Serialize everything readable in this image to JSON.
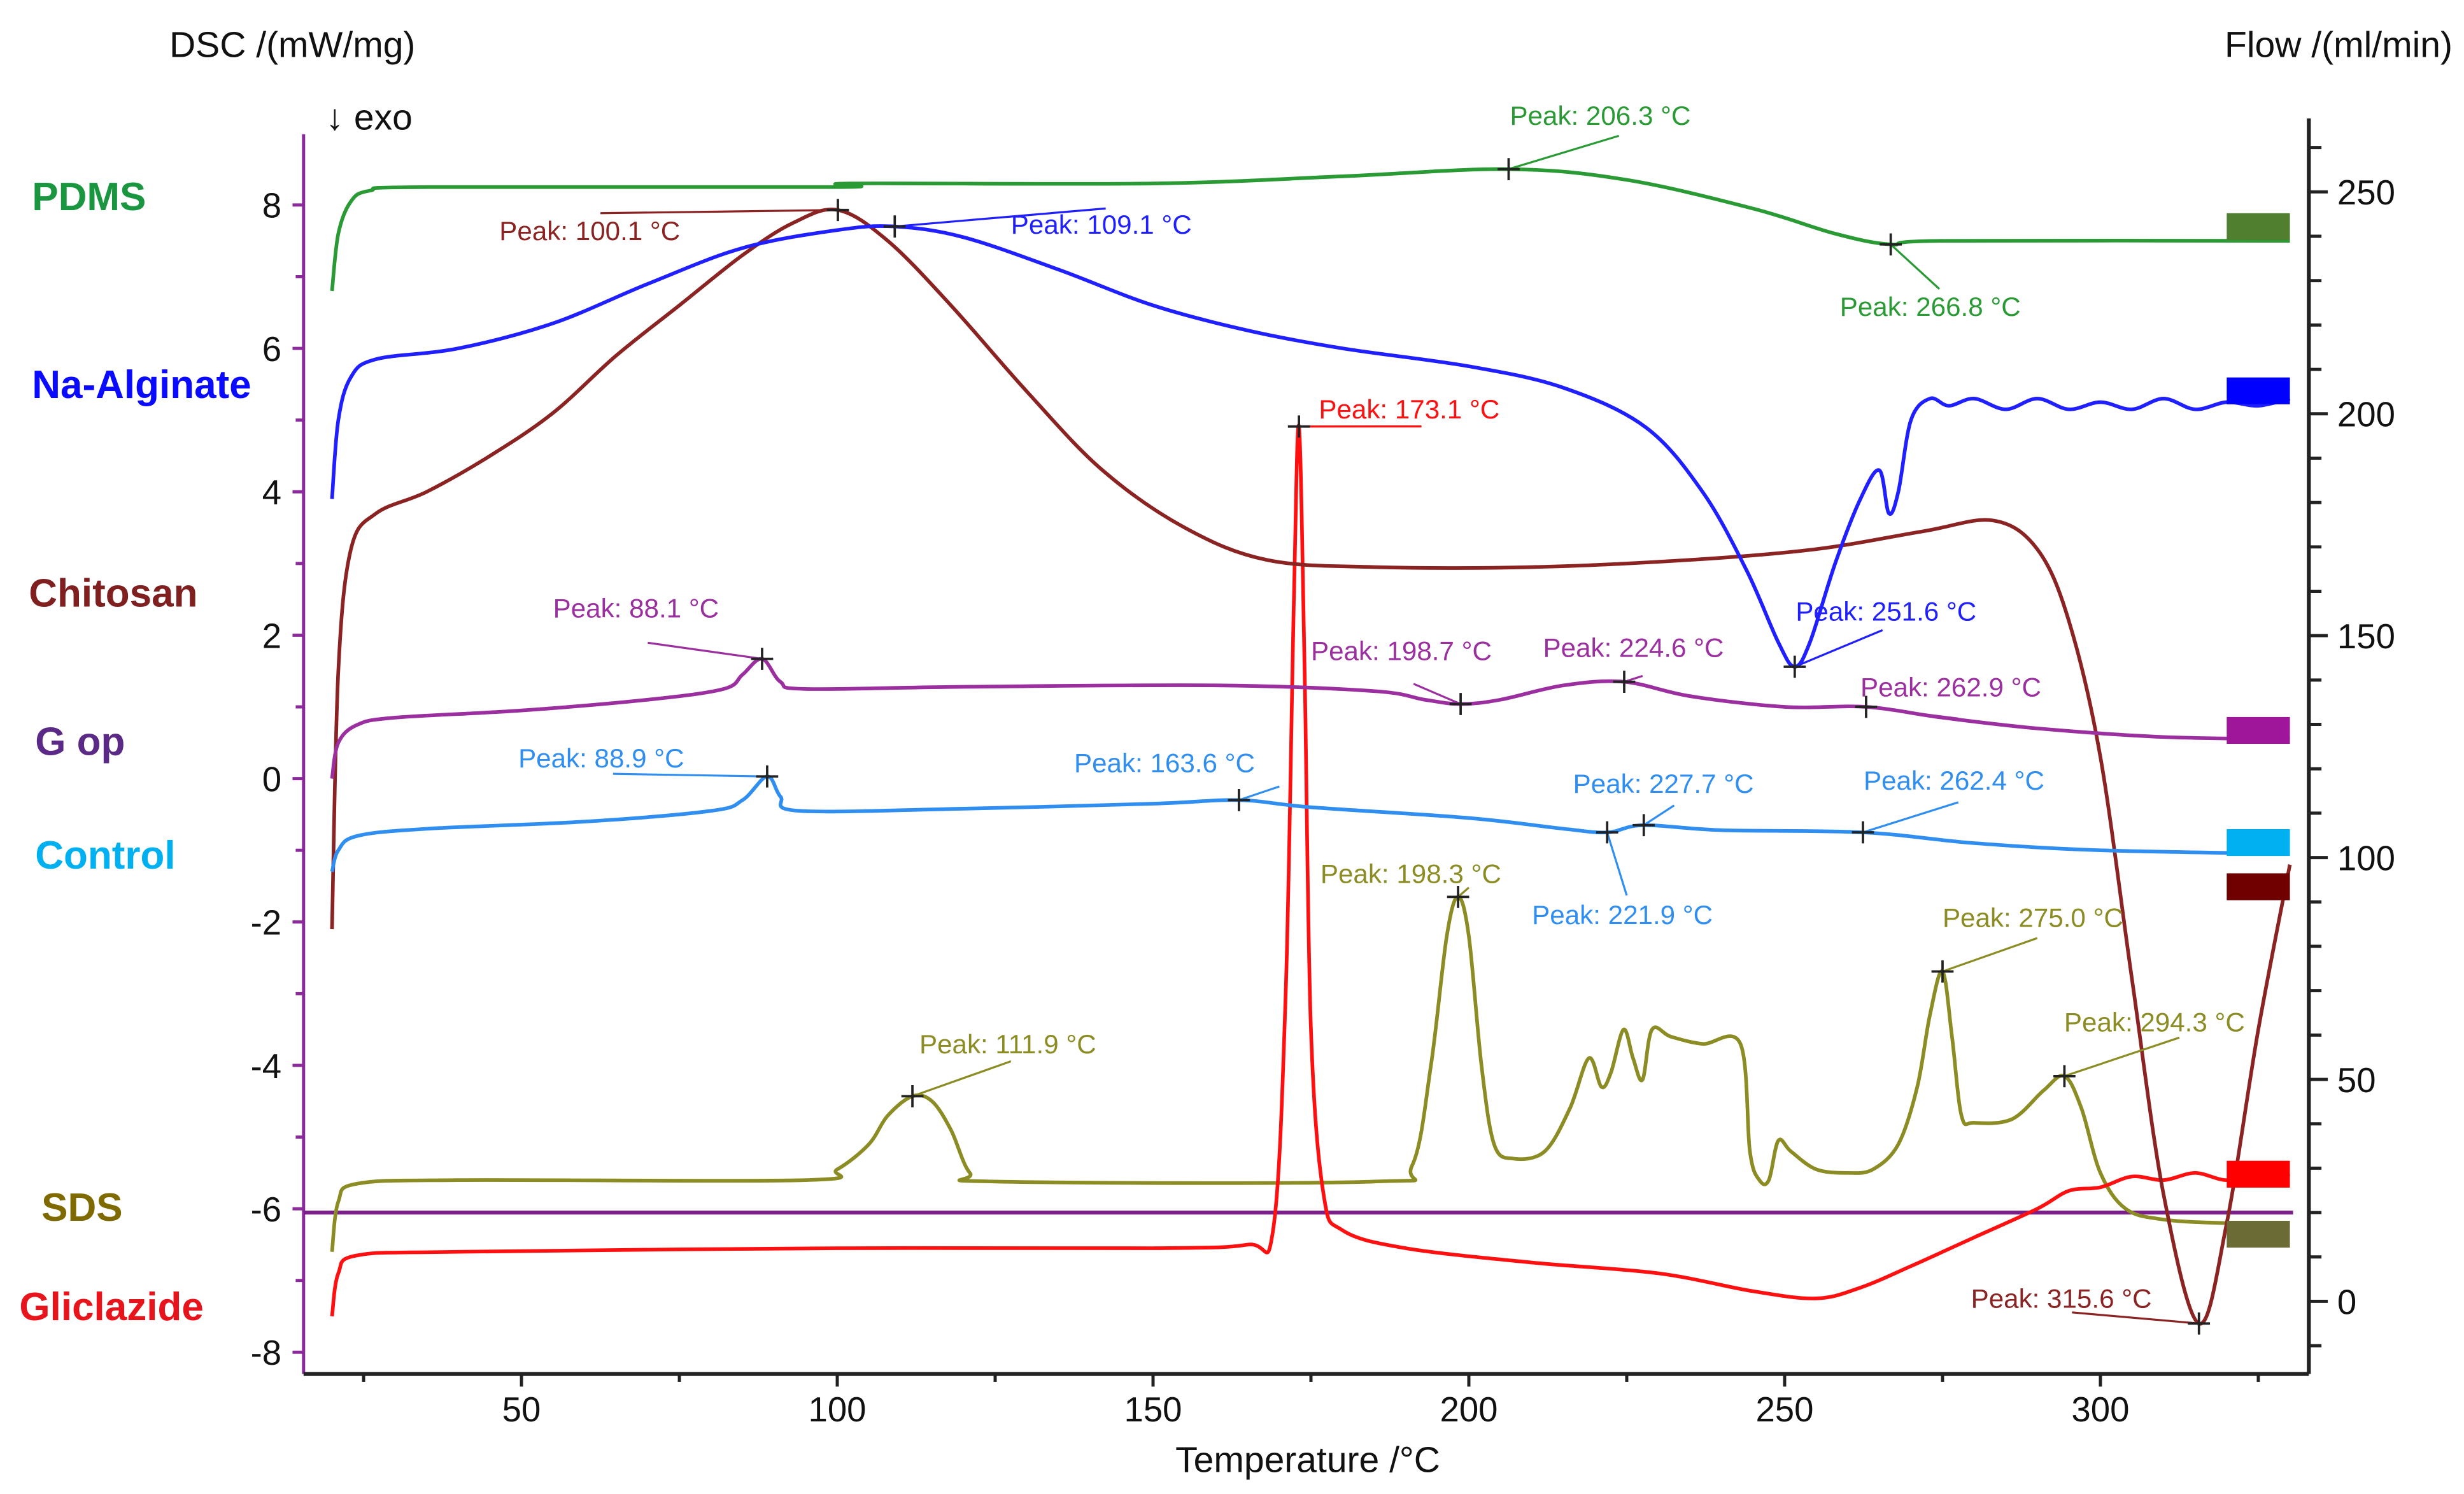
{
  "chart_data": {
    "type": "line",
    "title": "",
    "xlabel": "Temperature /°C",
    "ylabel": "DSC /(mW/mg)",
    "y2label": "Flow /(ml/min)",
    "exo_label": "↓ exo",
    "xlim": [
      15.5,
      333
    ],
    "ylim": [
      -8.5,
      9
    ],
    "y2lim": [
      -16,
      264
    ],
    "xticks": [
      50,
      100,
      150,
      200,
      250,
      300
    ],
    "yticks": [
      -8,
      -6,
      -4,
      -2,
      0,
      2,
      4,
      6,
      8
    ],
    "y2ticks": [
      0,
      50,
      100,
      150,
      200,
      250
    ],
    "grid": false,
    "series": [
      {
        "name": "PDMS",
        "color": "#2a9a35",
        "label_color": "#1a9641",
        "marker_color": "#4f7f2f",
        "points": [
          [
            20,
            6.8
          ],
          [
            21,
            7.6
          ],
          [
            23,
            8.05
          ],
          [
            26,
            8.2
          ],
          [
            35,
            8.25
          ],
          [
            100,
            8.25
          ],
          [
            102,
            8.3
          ],
          [
            150,
            8.3
          ],
          [
            180,
            8.4
          ],
          [
            206.3,
            8.5
          ],
          [
            225,
            8.35
          ],
          [
            245,
            7.95
          ],
          [
            258,
            7.6
          ],
          [
            266.8,
            7.45
          ],
          [
            275,
            7.5
          ],
          [
            330,
            7.5
          ]
        ],
        "peaks": [
          {
            "T": 206.3,
            "dsc": 8.5,
            "label": "Peak: 206.3 °C"
          },
          {
            "T": 266.8,
            "dsc": 7.45,
            "label": "Peak: 266.8 °C"
          }
        ]
      },
      {
        "name": "Na-Alginate",
        "color": "#1f1fff",
        "label_color": "#0a0aff",
        "marker_color": "#0000ff",
        "points": [
          [
            20,
            3.9
          ],
          [
            21,
            5.0
          ],
          [
            23,
            5.6
          ],
          [
            27,
            5.85
          ],
          [
            40,
            6.0
          ],
          [
            55,
            6.35
          ],
          [
            70,
            6.9
          ],
          [
            85,
            7.4
          ],
          [
            100,
            7.65
          ],
          [
            109.1,
            7.7
          ],
          [
            120,
            7.55
          ],
          [
            135,
            7.1
          ],
          [
            150,
            6.6
          ],
          [
            165,
            6.25
          ],
          [
            180,
            6.0
          ],
          [
            200,
            5.75
          ],
          [
            215,
            5.45
          ],
          [
            228,
            4.9
          ],
          [
            237,
            4.0
          ],
          [
            244,
            2.9
          ],
          [
            249,
            1.9
          ],
          [
            251.6,
            1.56
          ],
          [
            254,
            1.9
          ],
          [
            258,
            3.0
          ],
          [
            262,
            3.9
          ],
          [
            265,
            4.3
          ],
          [
            266.5,
            3.7
          ],
          [
            268,
            4.0
          ],
          [
            270,
            5.0
          ],
          [
            273,
            5.3
          ],
          [
            276,
            5.2
          ],
          [
            280,
            5.3
          ],
          [
            285,
            5.15
          ],
          [
            290,
            5.3
          ],
          [
            295,
            5.15
          ],
          [
            300,
            5.25
          ],
          [
            305,
            5.15
          ],
          [
            310,
            5.3
          ],
          [
            315,
            5.15
          ],
          [
            320,
            5.25
          ],
          [
            325,
            5.2
          ],
          [
            330,
            5.3
          ]
        ],
        "peaks": [
          {
            "T": 109.1,
            "dsc": 7.7,
            "label": "Peak: 109.1 °C"
          },
          {
            "T": 251.6,
            "dsc": 1.56,
            "label": "Peak: 251.6 °C"
          }
        ]
      },
      {
        "name": "Chitosan",
        "color": "#8b2323",
        "label_color": "#7f1f1f",
        "marker_color": "#700000",
        "points": [
          [
            20,
            -2.1
          ],
          [
            21,
            1.5
          ],
          [
            23,
            3.2
          ],
          [
            27,
            3.7
          ],
          [
            35,
            4.0
          ],
          [
            45,
            4.5
          ],
          [
            55,
            5.1
          ],
          [
            65,
            5.9
          ],
          [
            75,
            6.6
          ],
          [
            85,
            7.3
          ],
          [
            93,
            7.75
          ],
          [
            100.1,
            7.93
          ],
          [
            108,
            7.5
          ],
          [
            118,
            6.6
          ],
          [
            130,
            5.4
          ],
          [
            142,
            4.3
          ],
          [
            155,
            3.5
          ],
          [
            168,
            3.05
          ],
          [
            185,
            2.95
          ],
          [
            210,
            2.95
          ],
          [
            235,
            3.05
          ],
          [
            255,
            3.2
          ],
          [
            272,
            3.45
          ],
          [
            283,
            3.6
          ],
          [
            290,
            3.2
          ],
          [
            295,
            2.2
          ],
          [
            300,
            0.3
          ],
          [
            305,
            -2.8
          ],
          [
            310,
            -5.8
          ],
          [
            315.6,
            -7.6
          ],
          [
            320,
            -6.2
          ],
          [
            325,
            -3.5
          ],
          [
            330,
            -1.2
          ]
        ],
        "peaks": [
          {
            "T": 100.1,
            "dsc": 7.93,
            "label": "Peak: 100.1 °C"
          },
          {
            "T": 315.6,
            "dsc": -7.6,
            "label": "Peak: 315.6 °C"
          }
        ]
      },
      {
        "name": "G op",
        "color": "#9b2fa0",
        "label_color": "#5b2a86",
        "marker_color": "#a0169a",
        "points": [
          [
            20,
            0.0
          ],
          [
            21,
            0.5
          ],
          [
            24,
            0.75
          ],
          [
            30,
            0.85
          ],
          [
            50,
            0.95
          ],
          [
            70,
            1.1
          ],
          [
            82,
            1.25
          ],
          [
            85,
            1.45
          ],
          [
            88.1,
            1.67
          ],
          [
            91,
            1.35
          ],
          [
            95,
            1.25
          ],
          [
            120,
            1.28
          ],
          [
            160,
            1.3
          ],
          [
            185,
            1.22
          ],
          [
            193,
            1.1
          ],
          [
            198.7,
            1.04
          ],
          [
            205,
            1.1
          ],
          [
            215,
            1.3
          ],
          [
            224.6,
            1.35
          ],
          [
            235,
            1.15
          ],
          [
            250,
            1.0
          ],
          [
            262.9,
            1.0
          ],
          [
            275,
            0.85
          ],
          [
            290,
            0.7
          ],
          [
            310,
            0.58
          ],
          [
            330,
            0.55
          ]
        ],
        "peaks": [
          {
            "T": 88.1,
            "dsc": 1.67,
            "label": "Peak: 88.1 °C"
          },
          {
            "T": 198.7,
            "dsc": 1.04,
            "label": "Peak: 198.7 °C"
          },
          {
            "T": 224.6,
            "dsc": 1.35,
            "label": "Peak: 224.6 °C"
          },
          {
            "T": 262.9,
            "dsc": 1.0,
            "label": "Peak: 262.9 °C"
          }
        ]
      },
      {
        "name": "Control",
        "color": "#2f8ef0",
        "label_color": "#00b0f0",
        "marker_color": "#00b0f0",
        "points": [
          [
            20,
            -1.3
          ],
          [
            21,
            -1.0
          ],
          [
            24,
            -0.8
          ],
          [
            35,
            -0.7
          ],
          [
            60,
            -0.6
          ],
          [
            80,
            -0.45
          ],
          [
            85,
            -0.3
          ],
          [
            88.9,
            0.03
          ],
          [
            91,
            -0.25
          ],
          [
            94,
            -0.45
          ],
          [
            120,
            -0.42
          ],
          [
            150,
            -0.35
          ],
          [
            163.6,
            -0.3
          ],
          [
            175,
            -0.4
          ],
          [
            200,
            -0.55
          ],
          [
            215,
            -0.7
          ],
          [
            221.9,
            -0.75
          ],
          [
            227.7,
            -0.65
          ],
          [
            240,
            -0.72
          ],
          [
            262.4,
            -0.75
          ],
          [
            280,
            -0.9
          ],
          [
            300,
            -1.0
          ],
          [
            330,
            -1.05
          ]
        ],
        "peaks": [
          {
            "T": 88.9,
            "dsc": 0.03,
            "label": "Peak: 88.9 °C"
          },
          {
            "T": 163.6,
            "dsc": -0.3,
            "label": "Peak: 163.6 °C"
          },
          {
            "T": 227.7,
            "dsc": -0.65,
            "label": "Peak: 227.7 °C"
          },
          {
            "T": 221.9,
            "dsc": -0.75,
            "label": "Peak: 221.9 °C"
          },
          {
            "T": 262.4,
            "dsc": -0.75,
            "label": "Peak: 262.4 °C"
          }
        ]
      },
      {
        "name": "SDS",
        "color": "#8c8c24",
        "label_color": "#7f6a00",
        "marker_color": "#6b6b35",
        "points": [
          [
            20,
            -6.6
          ],
          [
            21,
            -5.9
          ],
          [
            24,
            -5.65
          ],
          [
            40,
            -5.6
          ],
          [
            95,
            -5.6
          ],
          [
            100,
            -5.45
          ],
          [
            105,
            -5.1
          ],
          [
            108,
            -4.7
          ],
          [
            111.9,
            -4.43
          ],
          [
            115,
            -4.5
          ],
          [
            118,
            -4.9
          ],
          [
            121,
            -5.5
          ],
          [
            125,
            -5.62
          ],
          [
            185,
            -5.62
          ],
          [
            191,
            -5.4
          ],
          [
            194,
            -4.0
          ],
          [
            196.5,
            -2.2
          ],
          [
            198.3,
            -1.65
          ],
          [
            200,
            -2.2
          ],
          [
            202,
            -4.0
          ],
          [
            204,
            -5.1
          ],
          [
            207,
            -5.3
          ],
          [
            212,
            -5.2
          ],
          [
            216,
            -4.6
          ],
          [
            219,
            -3.9
          ],
          [
            221,
            -4.3
          ],
          [
            222.5,
            -4.1
          ],
          [
            224.5,
            -3.5
          ],
          [
            226,
            -3.9
          ],
          [
            227.5,
            -4.2
          ],
          [
            229,
            -3.5
          ],
          [
            232,
            -3.6
          ],
          [
            237,
            -3.7
          ],
          [
            243,
            -3.7
          ],
          [
            244.5,
            -5.2
          ],
          [
            246,
            -5.6
          ],
          [
            247.5,
            -5.6
          ],
          [
            249,
            -5.05
          ],
          [
            251,
            -5.2
          ],
          [
            255,
            -5.45
          ],
          [
            260,
            -5.5
          ],
          [
            264,
            -5.45
          ],
          [
            268,
            -5.1
          ],
          [
            271,
            -4.3
          ],
          [
            273,
            -3.3
          ],
          [
            275,
            -2.69
          ],
          [
            276.5,
            -3.6
          ],
          [
            278,
            -4.7
          ],
          [
            280,
            -4.8
          ],
          [
            286,
            -4.75
          ],
          [
            291,
            -4.35
          ],
          [
            294.3,
            -4.15
          ],
          [
            297,
            -4.6
          ],
          [
            300,
            -5.5
          ],
          [
            304,
            -6.0
          ],
          [
            310,
            -6.15
          ],
          [
            320,
            -6.2
          ],
          [
            330,
            -6.2
          ]
        ],
        "peaks": [
          {
            "T": 111.9,
            "dsc": -4.43,
            "label": "Peak: 111.9 °C"
          },
          {
            "T": 198.3,
            "dsc": -1.65,
            "label": "Peak: 198.3 °C"
          },
          {
            "T": 275.0,
            "dsc": -2.69,
            "label": "Peak: 275.0 °C"
          },
          {
            "T": 294.3,
            "dsc": -4.15,
            "label": "Peak: 294.3 °C"
          }
        ]
      },
      {
        "name": "Gliclazide",
        "color": "#ff1010",
        "label_color": "#e8141c",
        "marker_color": "#ff0000",
        "points": [
          [
            20,
            -7.5
          ],
          [
            21,
            -6.9
          ],
          [
            24,
            -6.65
          ],
          [
            40,
            -6.6
          ],
          [
            100,
            -6.55
          ],
          [
            150,
            -6.55
          ],
          [
            165,
            -6.5
          ],
          [
            169,
            -6.3
          ],
          [
            171,
            -3.0
          ],
          [
            172.3,
            2.5
          ],
          [
            173.1,
            4.91
          ],
          [
            174,
            1.5
          ],
          [
            175,
            -3.5
          ],
          [
            177,
            -5.8
          ],
          [
            180,
            -6.3
          ],
          [
            190,
            -6.55
          ],
          [
            210,
            -6.75
          ],
          [
            230,
            -6.9
          ],
          [
            245,
            -7.15
          ],
          [
            255,
            -7.25
          ],
          [
            262,
            -7.1
          ],
          [
            270,
            -6.8
          ],
          [
            280,
            -6.4
          ],
          [
            290,
            -6.0
          ],
          [
            295,
            -5.75
          ],
          [
            300,
            -5.7
          ],
          [
            305,
            -5.55
          ],
          [
            310,
            -5.6
          ],
          [
            315,
            -5.5
          ],
          [
            320,
            -5.6
          ],
          [
            325,
            -5.5
          ],
          [
            330,
            -5.55
          ]
        ],
        "peaks": [
          {
            "T": 173.1,
            "dsc": 4.91,
            "label": "Peak: 173.1 °C"
          }
        ]
      }
    ],
    "flow": {
      "name": "Flow",
      "color": "#7a1f8a",
      "value": 20
    }
  }
}
